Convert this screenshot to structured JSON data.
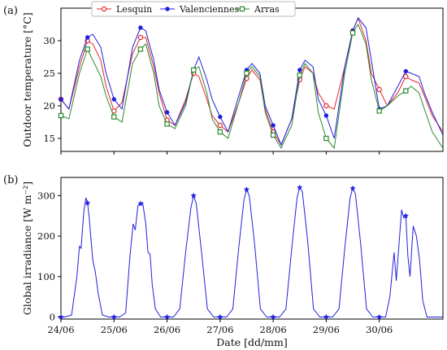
{
  "chart_data": [
    {
      "type": "line",
      "panel_label": "(a)",
      "ylabel": "Outdoor temperature [°C]",
      "ylim": [
        13,
        35
      ],
      "yticks": [
        15,
        20,
        25,
        30
      ],
      "xlim": [
        0,
        7.2
      ],
      "xticks": [
        0,
        1,
        2,
        3,
        4,
        5,
        6
      ],
      "xticklabels": [],
      "grid": false,
      "legend": {
        "placement": "top-center",
        "entries": [
          "Lesquin",
          "Valenciennes",
          "Arras"
        ]
      },
      "series": [
        {
          "name": "Lesquin",
          "color": "#e8232a",
          "marker": "open-circle",
          "x": [
            0,
            0.15,
            0.35,
            0.5,
            0.6,
            0.75,
            0.85,
            1.0,
            1.15,
            1.35,
            1.5,
            1.6,
            1.75,
            1.85,
            2.0,
            2.15,
            2.35,
            2.5,
            2.6,
            2.75,
            2.85,
            3.0,
            3.15,
            3.35,
            3.5,
            3.6,
            3.75,
            3.85,
            4.0,
            4.15,
            4.35,
            4.5,
            4.6,
            4.75,
            4.85,
            5.0,
            5.15,
            5.35,
            5.5,
            5.6,
            5.75,
            5.85,
            6.0,
            6.15,
            6.35,
            6.5,
            6.6,
            6.75,
            6.85,
            7.0,
            7.2
          ],
          "y": [
            21,
            19.5,
            26,
            30,
            29.5,
            27,
            23,
            19.2,
            20.5,
            28,
            30.5,
            30.5,
            26,
            22,
            17.8,
            17,
            21,
            25,
            24.5,
            21,
            18.5,
            17,
            16,
            20.5,
            24.2,
            25.5,
            24,
            19.5,
            16,
            14,
            18,
            24,
            26,
            25,
            22,
            20,
            19.5,
            26,
            31.5,
            33.5,
            30,
            25,
            22.5,
            20,
            22,
            24.5,
            24,
            23.5,
            21.5,
            18.5,
            16
          ]
        },
        {
          "name": "Valenciennes",
          "color": "#1f1fdf",
          "marker": "filled-circle",
          "x": [
            0,
            0.15,
            0.35,
            0.5,
            0.6,
            0.75,
            0.85,
            1.0,
            1.15,
            1.35,
            1.5,
            1.6,
            1.75,
            1.85,
            2.0,
            2.15,
            2.35,
            2.5,
            2.6,
            2.75,
            2.85,
            3.0,
            3.15,
            3.35,
            3.5,
            3.6,
            3.75,
            3.85,
            4.0,
            4.15,
            4.35,
            4.5,
            4.6,
            4.75,
            4.85,
            5.0,
            5.15,
            5.35,
            5.5,
            5.6,
            5.75,
            5.85,
            6.0,
            6.15,
            6.35,
            6.5,
            6.6,
            6.75,
            6.85,
            7.0,
            7.2
          ],
          "y": [
            21,
            19.5,
            27,
            30.5,
            31,
            29,
            25,
            21,
            19.5,
            29,
            32,
            31.5,
            27,
            22.5,
            19,
            17,
            20.5,
            25.5,
            27.5,
            24,
            21,
            18.3,
            16,
            21.5,
            25.5,
            26.5,
            25,
            20,
            17,
            14,
            18,
            25.5,
            27,
            26,
            21,
            18.5,
            15,
            26,
            31.5,
            33.5,
            32,
            27,
            19.5,
            20,
            23,
            25.3,
            25,
            24.5,
            22,
            19,
            15.5
          ]
        },
        {
          "name": "Arras",
          "color": "#2a8a2a",
          "marker": "open-square",
          "x": [
            0,
            0.15,
            0.35,
            0.5,
            0.6,
            0.75,
            0.85,
            1.0,
            1.15,
            1.35,
            1.5,
            1.6,
            1.75,
            1.85,
            2.0,
            2.15,
            2.35,
            2.5,
            2.6,
            2.75,
            2.85,
            3.0,
            3.15,
            3.35,
            3.5,
            3.6,
            3.75,
            3.85,
            4.0,
            4.15,
            4.35,
            4.5,
            4.6,
            4.75,
            4.85,
            5.0,
            5.15,
            5.35,
            5.5,
            5.6,
            5.75,
            5.85,
            6.0,
            6.15,
            6.35,
            6.5,
            6.6,
            6.75,
            6.85,
            7.0,
            7.2
          ],
          "y": [
            18.5,
            18,
            25,
            28.7,
            27,
            24.5,
            21.5,
            18.3,
            17.5,
            26.5,
            28.7,
            29.5,
            25,
            20,
            17.2,
            16.5,
            20,
            25.5,
            26,
            22,
            18,
            16,
            15,
            20.5,
            25,
            26,
            24.5,
            19,
            15.5,
            13.5,
            17,
            24.7,
            26.5,
            25,
            19,
            15,
            13.5,
            25,
            31.2,
            32.5,
            29.5,
            24,
            19.2,
            20,
            21.5,
            22.3,
            23,
            22,
            19.5,
            16,
            13.5
          ]
        }
      ]
    },
    {
      "type": "line",
      "panel_label": "(b)",
      "ylabel": "Global irradiance [W m⁻²]",
      "xlabel": "Date [dd/mm]",
      "ylim": [
        -5,
        345
      ],
      "yticks": [
        0,
        100,
        200,
        300
      ],
      "xlim": [
        0,
        7.2
      ],
      "xticks": [
        0,
        1,
        2,
        3,
        4,
        5,
        6
      ],
      "xticklabels": [
        "24/06",
        "25/06",
        "26/06",
        "27/06",
        "28/06",
        "29/06",
        "30/06"
      ],
      "grid": false,
      "series": [
        {
          "name": "",
          "color": "#1f1fdf",
          "marker": "star",
          "x": [
            0,
            0.08,
            0.2,
            0.3,
            0.35,
            0.38,
            0.43,
            0.47,
            0.5,
            0.53,
            0.56,
            0.6,
            0.65,
            0.7,
            0.78,
            0.9,
            1.0,
            1.1,
            1.22,
            1.3,
            1.36,
            1.4,
            1.45,
            1.5,
            1.54,
            1.6,
            1.64,
            1.68,
            1.72,
            1.78,
            1.88,
            2.0,
            2.12,
            2.24,
            2.35,
            2.45,
            2.5,
            2.55,
            2.65,
            2.76,
            2.88,
            3.0,
            3.12,
            3.24,
            3.35,
            3.45,
            3.5,
            3.55,
            3.65,
            3.76,
            3.88,
            4.0,
            4.12,
            4.24,
            4.35,
            4.45,
            4.5,
            4.55,
            4.65,
            4.76,
            4.88,
            5.0,
            5.12,
            5.24,
            5.35,
            5.45,
            5.5,
            5.55,
            5.65,
            5.76,
            5.88,
            6.0,
            6.12,
            6.2,
            6.28,
            6.32,
            6.36,
            6.42,
            6.46,
            6.5,
            6.54,
            6.58,
            6.64,
            6.7,
            6.76,
            6.82,
            6.9,
            6.96,
            7.2
          ],
          "y": [
            0,
            0,
            5,
            100,
            175,
            170,
            260,
            295,
            282,
            250,
            200,
            140,
            110,
            60,
            5,
            0,
            0,
            0,
            10,
            150,
            230,
            215,
            275,
            280,
            283,
            230,
            160,
            155,
            80,
            20,
            0,
            0,
            0,
            20,
            160,
            270,
            300,
            280,
            160,
            20,
            0,
            0,
            0,
            20,
            170,
            290,
            315,
            300,
            180,
            20,
            0,
            0,
            0,
            20,
            170,
            295,
            320,
            310,
            190,
            20,
            0,
            0,
            0,
            20,
            170,
            295,
            318,
            305,
            180,
            20,
            0,
            0,
            0,
            50,
            160,
            90,
            160,
            265,
            245,
            250,
            150,
            100,
            225,
            200,
            140,
            40,
            0,
            0,
            0
          ]
        }
      ]
    }
  ]
}
